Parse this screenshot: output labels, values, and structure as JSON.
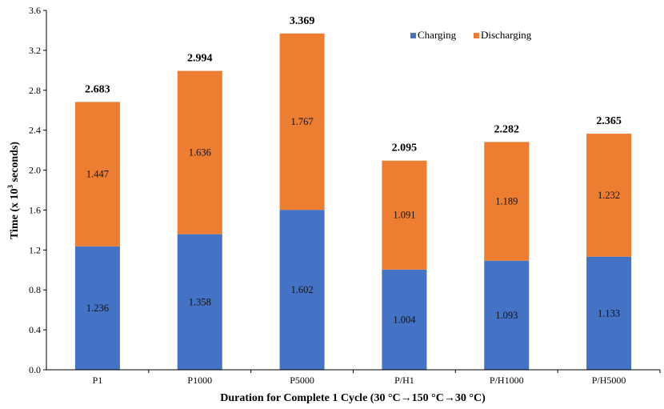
{
  "chart_data": {
    "type": "bar",
    "stacked": true,
    "categories": [
      "P1",
      "P1000",
      "P5000",
      "P/H1",
      "P/H1000",
      "P/H5000"
    ],
    "series": [
      {
        "name": "Charging",
        "values": [
          1.236,
          1.358,
          1.602,
          1.004,
          1.093,
          1.133
        ],
        "color": "#4472c4"
      },
      {
        "name": "Discharging",
        "values": [
          1.447,
          1.636,
          1.767,
          1.091,
          1.189,
          1.232
        ],
        "color": "#ed7d31"
      }
    ],
    "segment_labels": {
      "Charging": [
        "1.236",
        "1.358",
        "1.602",
        "1.004",
        "1.093",
        "1.133"
      ],
      "Discharging": [
        "1.447",
        "1.636",
        "1.767",
        "1.091",
        "1.189",
        "1.232"
      ]
    },
    "totals": [
      "2.683",
      "2.994",
      "3.369",
      "2.095",
      "2.282",
      "2.365"
    ],
    "yticks": [
      "0.0",
      "0.4",
      "0.8",
      "1.2",
      "1.6",
      "2.0",
      "2.4",
      "2.8",
      "3.2",
      "3.6"
    ],
    "ylim": [
      0,
      3.6
    ],
    "ylabel_main": "Time (x 10",
    "ylabel_sup": "3",
    "ylabel_tail": " seconds)",
    "xlabel": "Duration for Complete 1 Cycle (30 °C→150 °C→30 °C)",
    "legend_position": "top-right",
    "grid": false
  }
}
